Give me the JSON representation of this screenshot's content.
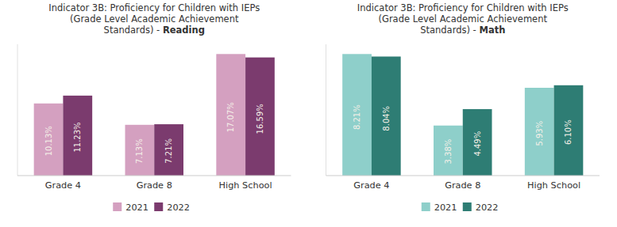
{
  "chart_data": [
    {
      "type": "bar",
      "title": "Indicator 3B: Proficiency for Children with IEPs\n(Grade Level Academic Achievement\nStandards) - Reading",
      "categories": [
        "Grade 4",
        "Grade 8",
        "High School"
      ],
      "series": [
        {
          "name": "2021",
          "color": "#d4a0c0",
          "values": [
            10.13,
            7.13,
            17.07
          ],
          "value_labels": [
            "10.13%",
            "7.13%",
            "17.07%"
          ]
        },
        {
          "name": "2022",
          "color": "#7b3b6e",
          "values": [
            11.23,
            7.21,
            16.59
          ],
          "value_labels": [
            "11.23%",
            "7.21%",
            "16.59%"
          ]
        }
      ],
      "ylim": [
        0,
        18.4356
      ],
      "yticks": [],
      "tick_labels": "x",
      "data_labels": true,
      "grid": false,
      "legend": "bottom"
    },
    {
      "type": "bar",
      "title": "Indicator 3B: Proficiency for Children with IEPs\n(Grade Level Academic Achievement\nStandards) - Math",
      "categories": [
        "Grade 4",
        "Grade 8",
        "High School"
      ],
      "series": [
        {
          "name": "2021",
          "color": "#8ecfca",
          "values": [
            8.21,
            3.38,
            5.93
          ],
          "value_labels": [
            "8.21%",
            "3.38%",
            "5.93%"
          ]
        },
        {
          "name": "2022",
          "color": "#2e7d74",
          "values": [
            8.04,
            4.49,
            6.1
          ],
          "value_labels": [
            "8.04%",
            "4.49%",
            "6.10%"
          ]
        }
      ],
      "ylim": [
        0,
        8.8668
      ],
      "yticks": [],
      "tick_labels": "x",
      "data_labels": true,
      "grid": false,
      "legend": "bottom"
    }
  ]
}
